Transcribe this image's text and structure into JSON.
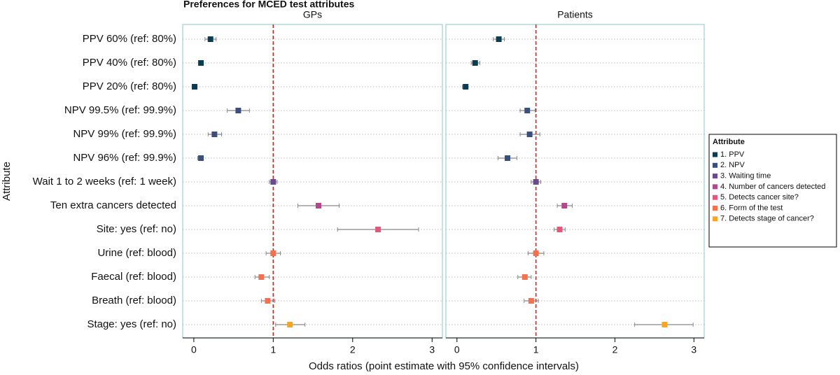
{
  "chart_data": {
    "type": "forest",
    "title": "Preferences for MCED test attributes",
    "xlabel": "Odds ratios (point estimate with 95% confidence intervals)",
    "ylabel": "Attribute",
    "legend_title": "Attribute",
    "legend_position": "right",
    "reference_line": 1,
    "xlim": [
      -0.14,
      3.13
    ],
    "xticks": [
      0,
      1,
      2,
      3
    ],
    "grid": true,
    "categories": [
      "PPV 60% (ref: 80%)",
      "PPV 40% (ref: 80%)",
      "PPV 20% (ref: 80%)",
      "NPV 99.5% (ref: 99.9%)",
      "NPV 99% (ref: 99.9%)",
      "NPV 96% (ref: 99.9%)",
      "Wait 1 to 2 weeks (ref: 1 week)",
      "Ten extra cancers detected",
      "Site: yes (ref: no)",
      "Urine (ref: blood)",
      "Faecal (ref: blood)",
      "Breath (ref: blood)",
      "Stage: yes (ref: no)"
    ],
    "series": [
      {
        "name": "1. PPV",
        "color": "#0b3d52"
      },
      {
        "name": "2. NPV",
        "color": "#3b4e80"
      },
      {
        "name": "3. Waiting time",
        "color": "#6a4a8c"
      },
      {
        "name": "4. Number of cancers detected",
        "color": "#b3478c"
      },
      {
        "name": "5. Detects cancer site?",
        "color": "#e2577b"
      },
      {
        "name": "6. Form of the test",
        "color": "#f2724f"
      },
      {
        "name": "7. Detects stage of cancer?",
        "color": "#f6a623"
      }
    ],
    "panels": [
      {
        "title": "GPs",
        "series": [
          {
            "values": [
              0.21,
              0.09,
              0.01,
              null,
              null,
              null,
              null,
              null,
              null,
              null,
              null,
              null,
              null
            ],
            "lower": [
              0.14,
              0.07,
              0.0,
              null,
              null,
              null,
              null,
              null,
              null,
              null,
              null,
              null,
              null
            ],
            "upper": [
              0.28,
              0.11,
              0.02,
              null,
              null,
              null,
              null,
              null,
              null,
              null,
              null,
              null,
              null
            ]
          },
          {
            "values": [
              null,
              null,
              null,
              0.56,
              0.26,
              0.09,
              null,
              null,
              null,
              null,
              null,
              null,
              null
            ],
            "lower": [
              null,
              null,
              null,
              0.42,
              0.18,
              0.05,
              null,
              null,
              null,
              null,
              null,
              null,
              null
            ],
            "upper": [
              null,
              null,
              null,
              0.7,
              0.35,
              0.12,
              null,
              null,
              null,
              null,
              null,
              null,
              null
            ]
          },
          {
            "values": [
              null,
              null,
              null,
              null,
              null,
              null,
              1.0,
              null,
              null,
              null,
              null,
              null,
              null
            ],
            "lower": [
              null,
              null,
              null,
              null,
              null,
              null,
              0.95,
              null,
              null,
              null,
              null,
              null,
              null
            ],
            "upper": [
              null,
              null,
              null,
              null,
              null,
              null,
              1.05,
              null,
              null,
              null,
              null,
              null,
              null
            ]
          },
          {
            "values": [
              null,
              null,
              null,
              null,
              null,
              null,
              null,
              1.57,
              null,
              null,
              null,
              null,
              null
            ],
            "lower": [
              null,
              null,
              null,
              null,
              null,
              null,
              null,
              1.31,
              null,
              null,
              null,
              null,
              null
            ],
            "upper": [
              null,
              null,
              null,
              null,
              null,
              null,
              null,
              1.83,
              null,
              null,
              null,
              null,
              null
            ]
          },
          {
            "values": [
              null,
              null,
              null,
              null,
              null,
              null,
              null,
              null,
              2.32,
              null,
              null,
              null,
              null
            ],
            "lower": [
              null,
              null,
              null,
              null,
              null,
              null,
              null,
              null,
              1.81,
              null,
              null,
              null,
              null
            ],
            "upper": [
              null,
              null,
              null,
              null,
              null,
              null,
              null,
              null,
              2.83,
              null,
              null,
              null,
              null
            ]
          },
          {
            "values": [
              null,
              null,
              null,
              null,
              null,
              null,
              null,
              null,
              null,
              1.0,
              0.85,
              0.93,
              null
            ],
            "lower": [
              null,
              null,
              null,
              null,
              null,
              null,
              null,
              null,
              null,
              0.91,
              0.77,
              0.85,
              null
            ],
            "upper": [
              null,
              null,
              null,
              null,
              null,
              null,
              null,
              null,
              null,
              1.09,
              0.95,
              1.02,
              null
            ]
          },
          {
            "values": [
              null,
              null,
              null,
              null,
              null,
              null,
              null,
              null,
              null,
              null,
              null,
              null,
              1.21
            ],
            "lower": [
              null,
              null,
              null,
              null,
              null,
              null,
              null,
              null,
              null,
              null,
              null,
              null,
              1.03
            ],
            "upper": [
              null,
              null,
              null,
              null,
              null,
              null,
              null,
              null,
              null,
              null,
              null,
              null,
              1.4
            ]
          }
        ]
      },
      {
        "title": "Patients",
        "series": [
          {
            "values": [
              0.53,
              0.23,
              0.11,
              null,
              null,
              null,
              null,
              null,
              null,
              null,
              null,
              null,
              null
            ],
            "lower": [
              0.46,
              0.18,
              0.07,
              null,
              null,
              null,
              null,
              null,
              null,
              null,
              null,
              null,
              null
            ],
            "upper": [
              0.6,
              0.29,
              0.13,
              null,
              null,
              null,
              null,
              null,
              null,
              null,
              null,
              null,
              null
            ]
          },
          {
            "values": [
              null,
              null,
              null,
              0.89,
              0.92,
              0.64,
              null,
              null,
              null,
              null,
              null,
              null,
              null
            ],
            "lower": [
              null,
              null,
              null,
              0.8,
              0.8,
              0.52,
              null,
              null,
              null,
              null,
              null,
              null,
              null
            ],
            "upper": [
              null,
              null,
              null,
              0.99,
              1.05,
              0.76,
              null,
              null,
              null,
              null,
              null,
              null,
              null
            ]
          },
          {
            "values": [
              null,
              null,
              null,
              null,
              null,
              null,
              1.0,
              null,
              null,
              null,
              null,
              null,
              null
            ],
            "lower": [
              null,
              null,
              null,
              null,
              null,
              null,
              0.94,
              null,
              null,
              null,
              null,
              null,
              null
            ],
            "upper": [
              null,
              null,
              null,
              null,
              null,
              null,
              1.06,
              null,
              null,
              null,
              null,
              null,
              null
            ]
          },
          {
            "values": [
              null,
              null,
              null,
              null,
              null,
              null,
              null,
              1.36,
              null,
              null,
              null,
              null,
              null
            ],
            "lower": [
              null,
              null,
              null,
              null,
              null,
              null,
              null,
              1.27,
              null,
              null,
              null,
              null,
              null
            ],
            "upper": [
              null,
              null,
              null,
              null,
              null,
              null,
              null,
              1.46,
              null,
              null,
              null,
              null,
              null
            ]
          },
          {
            "values": [
              null,
              null,
              null,
              null,
              null,
              null,
              null,
              null,
              1.3,
              null,
              null,
              null,
              null
            ],
            "lower": [
              null,
              null,
              null,
              null,
              null,
              null,
              null,
              null,
              1.23,
              null,
              null,
              null,
              null
            ],
            "upper": [
              null,
              null,
              null,
              null,
              null,
              null,
              null,
              null,
              1.37,
              null,
              null,
              null,
              null
            ]
          },
          {
            "values": [
              null,
              null,
              null,
              null,
              null,
              null,
              null,
              null,
              null,
              1.0,
              0.86,
              0.94,
              null
            ],
            "lower": [
              null,
              null,
              null,
              null,
              null,
              null,
              null,
              null,
              null,
              0.9,
              0.77,
              0.85,
              null
            ],
            "upper": [
              null,
              null,
              null,
              null,
              null,
              null,
              null,
              null,
              null,
              1.1,
              0.94,
              1.03,
              null
            ]
          },
          {
            "values": [
              null,
              null,
              null,
              null,
              null,
              null,
              null,
              null,
              null,
              null,
              null,
              null,
              2.63
            ],
            "lower": [
              null,
              null,
              null,
              null,
              null,
              null,
              null,
              null,
              null,
              null,
              null,
              null,
              2.25
            ],
            "upper": [
              null,
              null,
              null,
              null,
              null,
              null,
              null,
              null,
              null,
              null,
              null,
              null,
              2.99
            ]
          }
        ]
      }
    ]
  }
}
